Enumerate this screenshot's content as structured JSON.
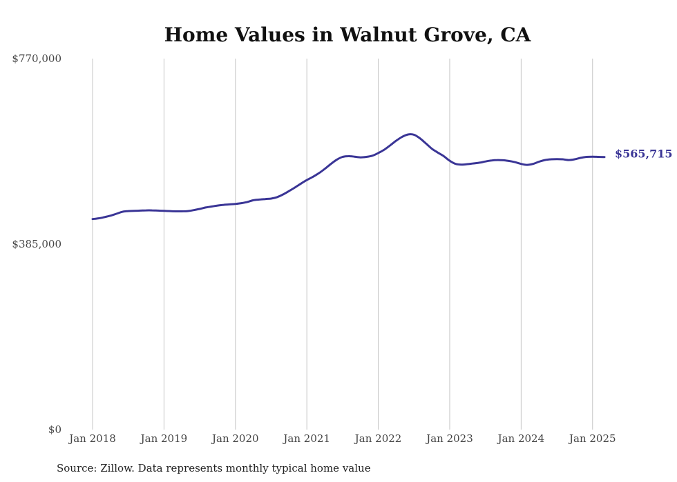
{
  "chart_data": {
    "type": "line",
    "title": "Home Values in Walnut Grove, CA",
    "source": "Source: Zillow. Data represents monthly typical home value",
    "ylim": [
      0,
      770000
    ],
    "y_ticks": [
      {
        "value": 0,
        "label": "$0"
      },
      {
        "value": 385000,
        "label": "$385,000"
      },
      {
        "value": 770000,
        "label": "$770,000"
      }
    ],
    "x_range": [
      "2018-01",
      "2025-03"
    ],
    "x_ticks": [
      {
        "date": "2018-01",
        "label": "Jan 2018"
      },
      {
        "date": "2019-01",
        "label": "Jan 2019"
      },
      {
        "date": "2020-01",
        "label": "Jan 2020"
      },
      {
        "date": "2021-01",
        "label": "Jan 2021"
      },
      {
        "date": "2022-01",
        "label": "Jan 2022"
      },
      {
        "date": "2023-01",
        "label": "Jan 2023"
      },
      {
        "date": "2024-01",
        "label": "Jan 2024"
      },
      {
        "date": "2025-01",
        "label": "Jan 2025"
      }
    ],
    "grid": "vertical",
    "line_color": "#3a3596",
    "end_label": "$565,715",
    "series": [
      {
        "points": [
          [
            "2018-01",
            437000
          ],
          [
            "2018-02",
            438500
          ],
          [
            "2018-03",
            441000
          ],
          [
            "2018-04",
            444000
          ],
          [
            "2018-05",
            448000
          ],
          [
            "2018-06",
            452000
          ],
          [
            "2018-07",
            453500
          ],
          [
            "2018-08",
            454000
          ],
          [
            "2018-09",
            454500
          ],
          [
            "2018-10",
            455000
          ],
          [
            "2018-11",
            455000
          ],
          [
            "2018-12",
            454500
          ],
          [
            "2019-01",
            454000
          ],
          [
            "2019-02",
            453500
          ],
          [
            "2019-03",
            453000
          ],
          [
            "2019-04",
            453000
          ],
          [
            "2019-05",
            453500
          ],
          [
            "2019-06",
            455500
          ],
          [
            "2019-07",
            458000
          ],
          [
            "2019-08",
            461000
          ],
          [
            "2019-09",
            463000
          ],
          [
            "2019-10",
            465000
          ],
          [
            "2019-11",
            466500
          ],
          [
            "2019-12",
            467500
          ],
          [
            "2020-01",
            468500
          ],
          [
            "2020-02",
            470000
          ],
          [
            "2020-03",
            472500
          ],
          [
            "2020-04",
            476000
          ],
          [
            "2020-05",
            477500
          ],
          [
            "2020-06",
            478500
          ],
          [
            "2020-07",
            479500
          ],
          [
            "2020-08",
            482500
          ],
          [
            "2020-09",
            488000
          ],
          [
            "2020-10",
            495000
          ],
          [
            "2020-11",
            502500
          ],
          [
            "2020-12",
            510500
          ],
          [
            "2021-01",
            518000
          ],
          [
            "2021-02",
            524500
          ],
          [
            "2021-03",
            532000
          ],
          [
            "2021-04",
            541000
          ],
          [
            "2021-05",
            551000
          ],
          [
            "2021-06",
            560000
          ],
          [
            "2021-07",
            566000
          ],
          [
            "2021-08",
            567500
          ],
          [
            "2021-09",
            566500
          ],
          [
            "2021-10",
            565000
          ],
          [
            "2021-11",
            566000
          ],
          [
            "2021-12",
            568500
          ],
          [
            "2022-01",
            574000
          ],
          [
            "2022-02",
            581000
          ],
          [
            "2022-03",
            590000
          ],
          [
            "2022-04",
            599500
          ],
          [
            "2022-05",
            607500
          ],
          [
            "2022-06",
            612500
          ],
          [
            "2022-07",
            612000
          ],
          [
            "2022-08",
            604500
          ],
          [
            "2022-09",
            594000
          ],
          [
            "2022-10",
            583000
          ],
          [
            "2022-11",
            575000
          ],
          [
            "2022-12",
            567500
          ],
          [
            "2023-01",
            558000
          ],
          [
            "2023-02",
            551500
          ],
          [
            "2023-03",
            550000
          ],
          [
            "2023-04",
            551000
          ],
          [
            "2023-05",
            552500
          ],
          [
            "2023-06",
            554000
          ],
          [
            "2023-07",
            556500
          ],
          [
            "2023-08",
            558500
          ],
          [
            "2023-09",
            559500
          ],
          [
            "2023-10",
            559000
          ],
          [
            "2023-11",
            557500
          ],
          [
            "2023-12",
            555000
          ],
          [
            "2024-01",
            551500
          ],
          [
            "2024-02",
            549500
          ],
          [
            "2024-03",
            551500
          ],
          [
            "2024-04",
            556000
          ],
          [
            "2024-05",
            559500
          ],
          [
            "2024-06",
            561000
          ],
          [
            "2024-07",
            561500
          ],
          [
            "2024-08",
            561000
          ],
          [
            "2024-09",
            559500
          ],
          [
            "2024-10",
            561000
          ],
          [
            "2024-11",
            564000
          ],
          [
            "2024-12",
            566000
          ],
          [
            "2025-01",
            566500
          ],
          [
            "2025-02",
            566000
          ],
          [
            "2025-03",
            565715
          ]
        ]
      }
    ]
  }
}
